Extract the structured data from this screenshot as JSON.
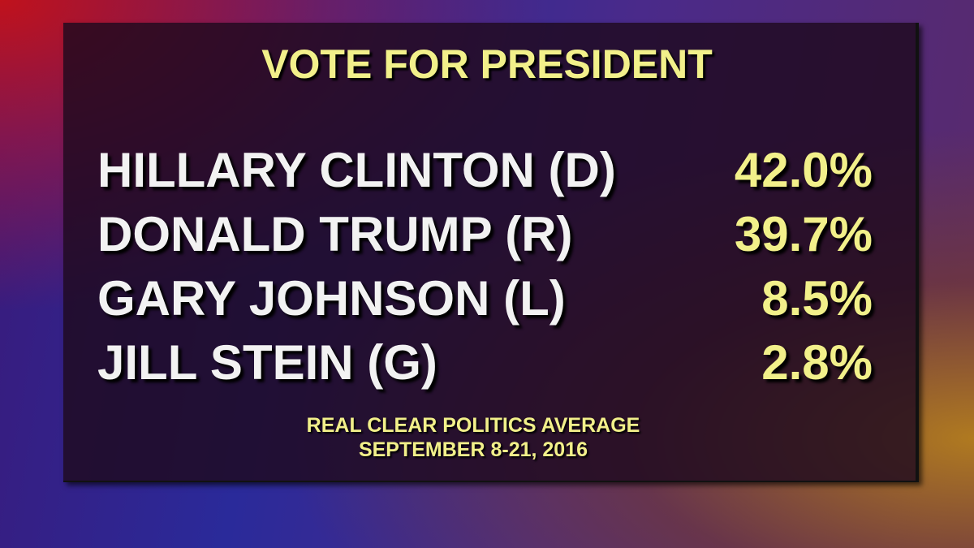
{
  "title": "VOTE FOR PRESIDENT",
  "table": {
    "rows": [
      [
        "HILLARY CLINTON (D)",
        "42.0%"
      ],
      [
        "DONALD TRUMP (R)",
        "39.7%"
      ],
      [
        "GARY JOHNSON (L)",
        "8.5%"
      ],
      [
        "JILL STEIN (G)",
        "2.8%"
      ]
    ]
  },
  "source": [
    "REAL CLEAR POLITICS AVERAGE",
    "SEPTEMBER 8-21, 2016"
  ]
}
